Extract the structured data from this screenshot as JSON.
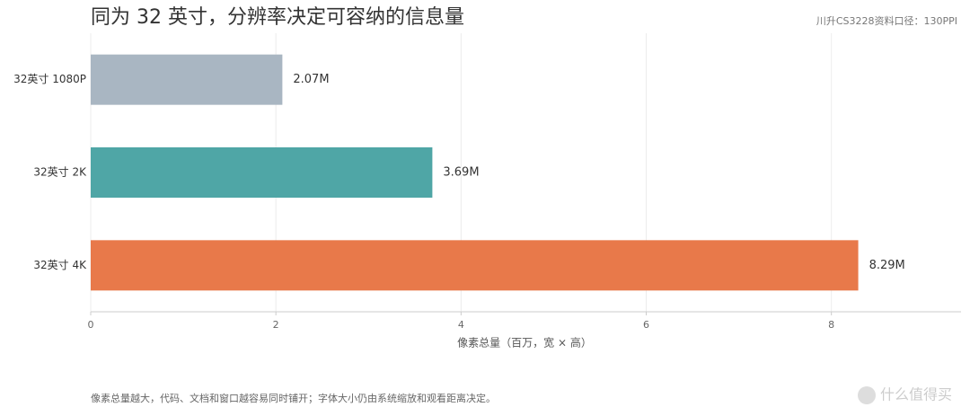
{
  "chart_data": {
    "type": "barh",
    "title": "同为 32 英寸，分辨率决定可容纳的信息量",
    "subtitle": "川升CS3228资料口径：130PPI",
    "xlabel": "像素总量（百万，宽 × 高）",
    "footnote": "像素总量越大，代码、文档和窗口越容易同时铺开；字体大小仍由系统缩放和观看距离决定。",
    "watermark": "什么值得买",
    "categories": [
      "32英寸 1080P",
      "32英寸 2K",
      "32英寸 4K"
    ],
    "values": [
      2.07,
      3.69,
      8.29
    ],
    "value_labels": [
      "2.07M",
      "3.69M",
      "8.29M"
    ],
    "colors": [
      "#a9b6c2",
      "#4fa6a6",
      "#e8794a"
    ],
    "xlim": [
      0,
      9.4
    ],
    "xticks": [
      0,
      2,
      4,
      6,
      8
    ],
    "grid": true
  }
}
